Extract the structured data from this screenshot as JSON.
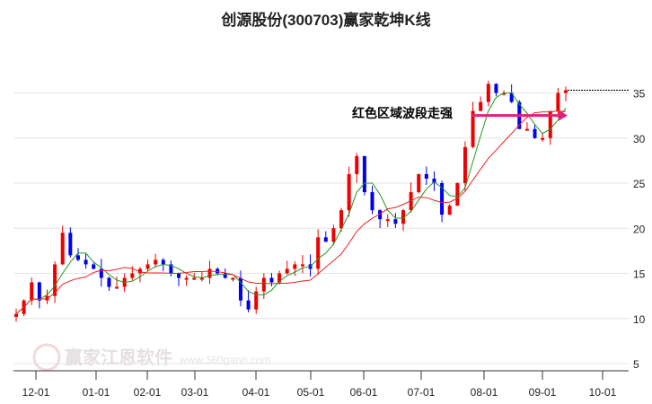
{
  "chart_data": {
    "type": "candlestick",
    "title": "创源股份(300703)赢家乾坤K线",
    "ylim": [
      5,
      38
    ],
    "yticks": [
      5,
      10,
      15,
      20,
      25,
      30,
      35
    ],
    "xticks": [
      "12-01",
      "01-01",
      "02-01",
      "03-01",
      "04-01",
      "05-01",
      "06-01",
      "07-01",
      "08-01",
      "09-01",
      "10-01"
    ],
    "annotation": "红色区域波段走强",
    "annotation_price": 32.5,
    "last_price": 35.3,
    "closes": [
      10.5,
      12,
      14,
      12,
      12.5,
      16,
      19.5,
      17,
      16.5,
      16,
      15.5,
      14.5,
      13.5,
      13.5,
      14.5,
      15,
      15.5,
      16,
      16.5,
      16,
      15,
      14.5,
      14.5,
      14.5,
      14.5,
      15.5,
      15,
      14.5,
      14.5,
      12,
      11,
      13,
      14.5,
      14,
      15,
      15.5,
      16,
      16,
      15.5,
      19,
      18.5,
      20,
      22,
      26,
      28,
      24,
      22,
      21,
      21,
      20.5,
      22,
      24,
      26,
      25.5,
      25,
      21.5,
      22.5,
      25,
      29,
      33,
      34,
      36,
      35,
      35,
      34,
      31,
      31,
      30,
      30,
      33,
      35,
      35.3
    ],
    "up_color": "#ee0000",
    "down_color": "#0000ee",
    "ma_short_color": "#229922",
    "ma_long_color": "#ee2222",
    "arrow_color": "#e0207a"
  },
  "watermark": {
    "brand": "赢家江恩软件",
    "url": "www.360gann.com",
    "seal": "江赢恩家"
  }
}
